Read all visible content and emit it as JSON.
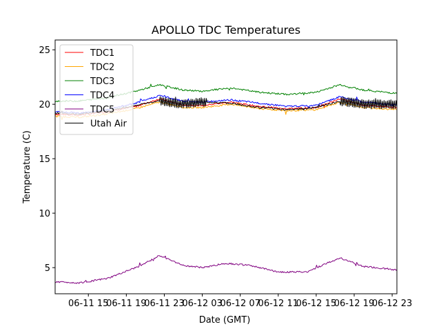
{
  "chart_data": {
    "type": "line",
    "title": "APOLLO TDC Temperatures",
    "xlabel": "Date (GMT)",
    "ylabel": "Temperature (C)",
    "ylim": [
      2.6,
      25.9
    ],
    "xlim_hours": [
      11.5,
      47.5
    ],
    "xticks": [
      {
        "label": "06-11 15",
        "hours": 15
      },
      {
        "label": "06-11 19",
        "hours": 19
      },
      {
        "label": "06-11 23",
        "hours": 23
      },
      {
        "label": "06-12 03",
        "hours": 27
      },
      {
        "label": "06-12 07",
        "hours": 31
      },
      {
        "label": "06-12 11",
        "hours": 35
      },
      {
        "label": "06-12 15",
        "hours": 39
      },
      {
        "label": "06-12 19",
        "hours": 43
      },
      {
        "label": "06-12 23",
        "hours": 47
      }
    ],
    "yticks": [
      5,
      10,
      15,
      20,
      25
    ],
    "grid": false,
    "legend_position": "top-left",
    "x_unit": "hours since 06-11 00 GMT",
    "series": [
      {
        "name": "TDC1",
        "color": "#ff0000",
        "x": [
          11.5,
          14,
          17,
          20,
          22.5,
          25,
          27,
          30,
          33,
          36,
          39,
          41.5,
          44,
          47.5
        ],
        "y": [
          19.1,
          19.0,
          19.3,
          19.8,
          20.5,
          19.9,
          19.9,
          20.2,
          19.8,
          19.6,
          19.7,
          20.5,
          19.9,
          19.7
        ]
      },
      {
        "name": "TDC2",
        "color": "#ffa500",
        "x": [
          11.5,
          14,
          17,
          20,
          22.5,
          25,
          27,
          30,
          33,
          36,
          39,
          41.5,
          44,
          47.5
        ],
        "y": [
          18.9,
          18.8,
          19.1,
          19.6,
          20.2,
          19.7,
          19.7,
          20.0,
          19.6,
          19.4,
          19.5,
          20.2,
          19.7,
          19.5
        ]
      },
      {
        "name": "TDC3",
        "color": "#008000",
        "x": [
          11.5,
          14,
          17,
          20,
          22.5,
          25,
          27,
          30,
          33,
          36,
          39,
          41.5,
          44,
          47.5
        ],
        "y": [
          20.3,
          20.3,
          20.6,
          21.2,
          21.8,
          21.3,
          21.2,
          21.5,
          21.1,
          20.9,
          21.1,
          21.8,
          21.3,
          21.0
        ]
      },
      {
        "name": "TDC4",
        "color": "#0000ff",
        "x": [
          11.5,
          14,
          17,
          20,
          22.5,
          25,
          27,
          30,
          33,
          36,
          39,
          41.5,
          44,
          47.5
        ],
        "y": [
          19.3,
          19.2,
          19.5,
          20.1,
          20.8,
          20.3,
          20.2,
          20.4,
          20.1,
          19.8,
          19.9,
          20.7,
          20.2,
          19.9
        ]
      },
      {
        "name": "TDC5",
        "color": "#800080",
        "x": [
          11.5,
          14,
          17,
          20,
          22.5,
          25,
          27,
          29.5,
          32,
          35,
          38,
          41.5,
          44,
          47.5
        ],
        "y": [
          3.7,
          3.6,
          4.0,
          5.0,
          6.1,
          5.2,
          5.0,
          5.4,
          5.2,
          4.6,
          4.6,
          5.9,
          5.1,
          4.8
        ]
      },
      {
        "name": "Utah Air",
        "color": "#000000",
        "x": [
          11.5,
          14,
          17,
          20,
          22.5,
          25,
          27,
          30,
          33,
          36,
          39,
          41.5,
          44,
          47.5
        ],
        "y": [
          19.2,
          19.1,
          19.4,
          19.9,
          20.3,
          20.0,
          20.2,
          20.1,
          19.7,
          19.5,
          19.7,
          20.3,
          20.0,
          20.0
        ]
      }
    ]
  }
}
